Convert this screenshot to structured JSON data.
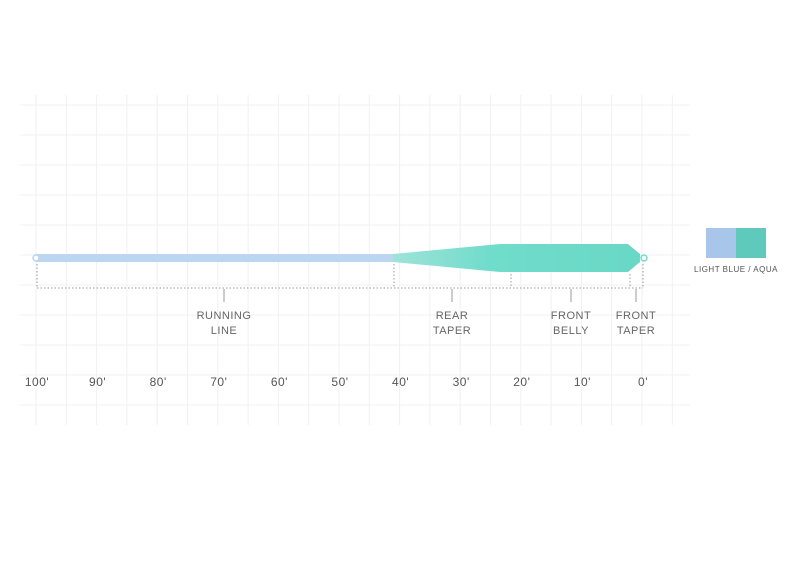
{
  "diagram": {
    "sections": [
      {
        "lines": [
          "RUNNING",
          "LINE"
        ]
      },
      {
        "lines": [
          "REAR",
          "TAPER"
        ]
      },
      {
        "lines": [
          "FRONT",
          "BELLY"
        ]
      },
      {
        "lines": [
          "FRONT",
          "TAPER"
        ]
      }
    ],
    "scale": [
      "100'",
      "90'",
      "80'",
      "70'",
      "60'",
      "50'",
      "40'",
      "30'",
      "20'",
      "10'",
      "0'"
    ],
    "swatch_label": "LIGHT BLUE / AQUA"
  }
}
